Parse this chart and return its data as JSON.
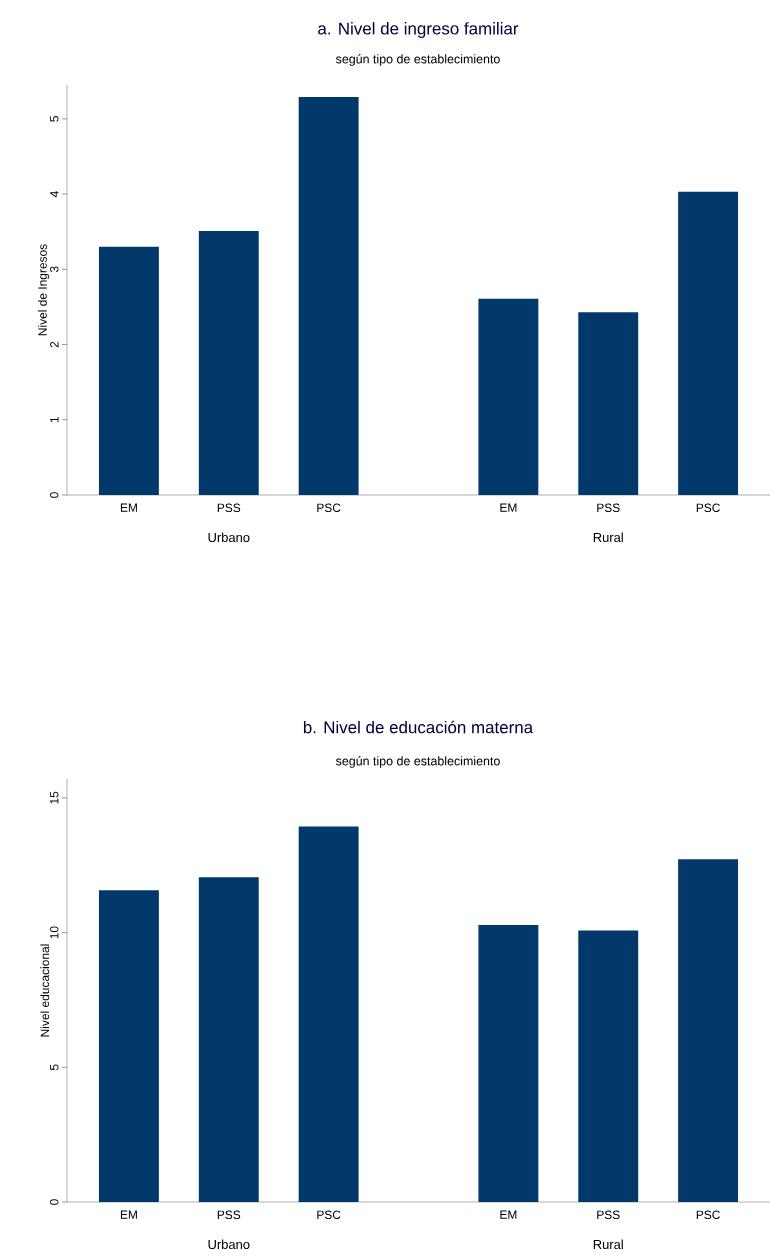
{
  "chart_data": [
    {
      "type": "bar",
      "title": "a. Nivel de ingreso familiar",
      "subtitle": "según tipo de establecimiento",
      "ylabel": "Nivel de Ingresos",
      "categories": [
        "EM",
        "PSS",
        "PSC",
        "EM",
        "PSS",
        "PSC"
      ],
      "values": [
        3.3,
        3.51,
        5.29,
        2.61,
        2.43,
        4.03
      ],
      "color": "#03386a",
      "ylim": [
        0,
        5.45
      ],
      "yticks": [
        0,
        1,
        2,
        3,
        4,
        5
      ],
      "grid": false,
      "annotations": [
        "Urbano",
        "Rural"
      ]
    },
    {
      "type": "bar",
      "title": "b. Nivel de educación materna",
      "subtitle": "según tipo de establecimiento",
      "ylabel": "Nivel educacional",
      "categories": [
        "EM",
        "PSS",
        "PSC",
        "EM",
        "PSS",
        "PSC"
      ],
      "values": [
        11.57,
        12.05,
        13.94,
        10.28,
        10.08,
        12.72
      ],
      "color": "#03386a",
      "ylim": [
        0,
        15.7
      ],
      "yticks": [
        0,
        5,
        10,
        15
      ],
      "grid": false,
      "annotations": [
        "Urbano",
        "Rural"
      ]
    }
  ]
}
